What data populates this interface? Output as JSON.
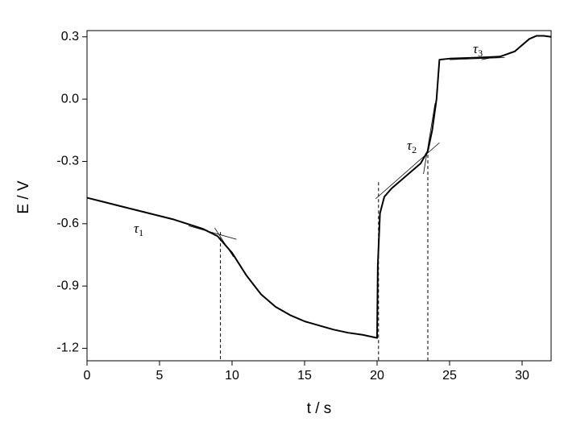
{
  "chart_data": {
    "type": "line",
    "xlabel": "t / s",
    "ylabel": "E / V",
    "x": [
      0,
      2,
      4,
      6,
      8,
      9,
      10,
      11,
      12,
      13,
      14,
      15,
      16,
      17,
      18,
      19,
      20,
      20.05,
      20.2,
      20.5,
      21,
      22,
      23,
      23.5,
      23.8,
      24.1,
      24.3,
      25,
      27,
      28.5,
      29.5,
      30,
      30.5,
      31,
      31.5,
      32
    ],
    "values": [
      -0.475,
      -0.51,
      -0.545,
      -0.58,
      -0.625,
      -0.66,
      -0.74,
      -0.85,
      -0.94,
      -1.0,
      -1.04,
      -1.07,
      -1.09,
      -1.11,
      -1.125,
      -1.135,
      -1.15,
      -0.8,
      -0.55,
      -0.47,
      -0.43,
      -0.37,
      -0.31,
      -0.25,
      -0.15,
      0.0,
      0.19,
      0.195,
      0.2,
      0.205,
      0.23,
      0.26,
      0.29,
      0.305,
      0.305,
      0.3
    ],
    "color": "#000000",
    "xlim": [
      0,
      32
    ],
    "ylim": [
      -1.26,
      0.33
    ],
    "xticks": [
      0,
      5,
      10,
      15,
      20,
      25,
      30
    ],
    "yticks": [
      -1.2,
      -0.9,
      -0.6,
      -0.3,
      {
        "value": 0,
        "label": "0.0"
      },
      0.3
    ],
    "grid": false,
    "transition_times": [
      9.2,
      20.1,
      23.5
    ],
    "transition_tops": [
      -0.64,
      -0.4,
      -0.24
    ],
    "tangent_lines": [
      {
        "x": [
          7.0,
          10.3
        ],
        "y": [
          -0.61,
          -0.675
        ]
      },
      {
        "x": [
          8.8,
          10.1
        ],
        "y": [
          -0.62,
          -0.76
        ]
      },
      {
        "x": [
          19.9,
          24.3
        ],
        "y": [
          -0.48,
          -0.21
        ]
      },
      {
        "x": [
          23.2,
          24.0
        ],
        "y": [
          -0.36,
          -0.02
        ]
      },
      {
        "x": [
          25.0,
          28.8
        ],
        "y": [
          0.19,
          0.2
        ]
      },
      {
        "x": [
          27.2,
          29.0
        ],
        "y": [
          0.19,
          0.215
        ]
      }
    ],
    "annotations": [
      {
        "symbol": "τ",
        "subscript": "1"
      },
      {
        "symbol": "τ",
        "subscript": "2"
      },
      {
        "symbol": "τ",
        "subscript": "3"
      }
    ]
  }
}
